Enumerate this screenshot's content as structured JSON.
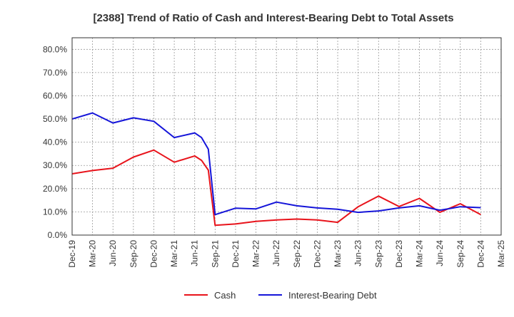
{
  "chart_data": {
    "type": "line",
    "title": "[2388]  Trend of Ratio of Cash and Interest-Bearing Debt to Total Assets",
    "xlabel": "",
    "ylabel": "",
    "ylim": [
      0,
      0.85
    ],
    "yticks": [
      0,
      0.1,
      0.2,
      0.3,
      0.4,
      0.5,
      0.6,
      0.7,
      0.8
    ],
    "ytick_labels": [
      "0.0%",
      "10.0%",
      "20.0%",
      "30.0%",
      "40.0%",
      "50.0%",
      "60.0%",
      "70.0%",
      "80.0%"
    ],
    "xticks": [
      "Dec-19",
      "Mar-20",
      "Jun-20",
      "Sep-20",
      "Dec-20",
      "Mar-21",
      "Jun-21",
      "Sep-21",
      "Dec-21",
      "Mar-22",
      "Jun-22",
      "Sep-22",
      "Dec-22",
      "Mar-23",
      "Jun-23",
      "Sep-23",
      "Dec-23",
      "Mar-24",
      "Jun-24",
      "Sep-24",
      "Dec-24",
      "Mar-25"
    ],
    "grid": true,
    "legend_position": "bottom",
    "series": [
      {
        "name": "Cash",
        "color": "#e8131b",
        "points": [
          [
            "Dec-19",
            0.264
          ],
          [
            "Mar-20",
            0.278
          ],
          [
            "Jun-20",
            0.288
          ],
          [
            "Sep-20",
            0.336
          ],
          [
            "Dec-20",
            0.366
          ],
          [
            "Mar-21",
            0.314
          ],
          [
            "Jun-21",
            0.341
          ],
          [
            "Jul-21",
            0.322
          ],
          [
            "Aug-21",
            0.28
          ],
          [
            "Sep-21",
            0.042
          ],
          [
            "Dec-21",
            0.048
          ],
          [
            "Mar-22",
            0.059
          ],
          [
            "Jun-22",
            0.065
          ],
          [
            "Sep-22",
            0.069
          ],
          [
            "Dec-22",
            0.065
          ],
          [
            "Mar-23",
            0.055
          ],
          [
            "Jun-23",
            0.122
          ],
          [
            "Sep-23",
            0.168
          ],
          [
            "Dec-23",
            0.123
          ],
          [
            "Mar-24",
            0.158
          ],
          [
            "Jun-24",
            0.098
          ],
          [
            "Sep-24",
            0.135
          ],
          [
            "Dec-24",
            0.088
          ]
        ]
      },
      {
        "name": "Interest-Bearing Debt",
        "color": "#1515d9",
        "points": [
          [
            "Dec-19",
            0.5
          ],
          [
            "Mar-20",
            0.526
          ],
          [
            "Jun-20",
            0.483
          ],
          [
            "Sep-20",
            0.505
          ],
          [
            "Dec-20",
            0.49
          ],
          [
            "Mar-21",
            0.42
          ],
          [
            "Jun-21",
            0.44
          ],
          [
            "Jul-21",
            0.42
          ],
          [
            "Aug-21",
            0.37
          ],
          [
            "Sep-21",
            0.088
          ],
          [
            "Dec-21",
            0.116
          ],
          [
            "Mar-22",
            0.113
          ],
          [
            "Jun-22",
            0.142
          ],
          [
            "Sep-22",
            0.126
          ],
          [
            "Dec-22",
            0.117
          ],
          [
            "Mar-23",
            0.111
          ],
          [
            "Jun-23",
            0.098
          ],
          [
            "Sep-23",
            0.104
          ],
          [
            "Dec-23",
            0.117
          ],
          [
            "Mar-24",
            0.126
          ],
          [
            "Jun-24",
            0.107
          ],
          [
            "Sep-24",
            0.122
          ],
          [
            "Dec-24",
            0.118
          ]
        ]
      }
    ]
  }
}
